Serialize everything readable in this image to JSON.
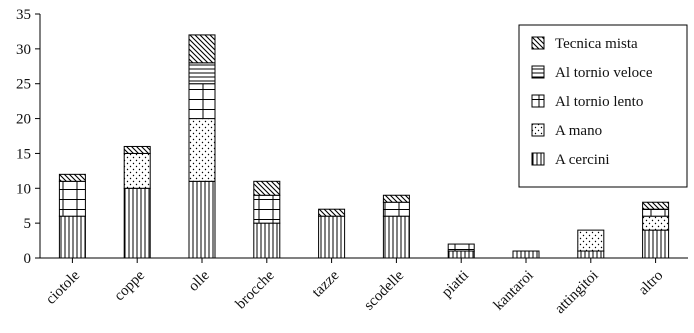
{
  "chart_data": {
    "type": "bar",
    "stacked": true,
    "title": "",
    "xlabel": "",
    "ylabel": "",
    "ylim": [
      0,
      35
    ],
    "yticks": [
      0,
      5,
      10,
      15,
      20,
      25,
      30,
      35
    ],
    "grid": false,
    "legend_position": "right",
    "categories": [
      "ciotole",
      "coppe",
      "olle",
      "brocche",
      "tazze",
      "scodelle",
      "piatti",
      "kantaroi",
      "attingitoi",
      "altro"
    ],
    "series": [
      {
        "name": "A cercini",
        "pattern": "vertical-lines",
        "values": [
          6,
          10,
          11,
          5,
          6,
          6,
          1,
          1,
          1,
          4
        ]
      },
      {
        "name": "A mano",
        "pattern": "dots",
        "values": [
          0,
          5,
          9,
          0,
          0,
          0,
          0,
          0,
          3,
          2
        ]
      },
      {
        "name": "Al tornio lento",
        "pattern": "grid",
        "values": [
          5,
          0,
          5,
          4,
          0,
          2,
          1,
          0,
          0,
          1
        ]
      },
      {
        "name": "Al tornio veloce",
        "pattern": "horizontal-lines",
        "values": [
          0,
          0,
          3,
          0,
          0,
          0,
          0,
          0,
          0,
          0
        ]
      },
      {
        "name": "Tecnica mista",
        "pattern": "diagonal-lines",
        "values": [
          1,
          1,
          4,
          2,
          1,
          1,
          0,
          0,
          0,
          1
        ]
      }
    ]
  }
}
